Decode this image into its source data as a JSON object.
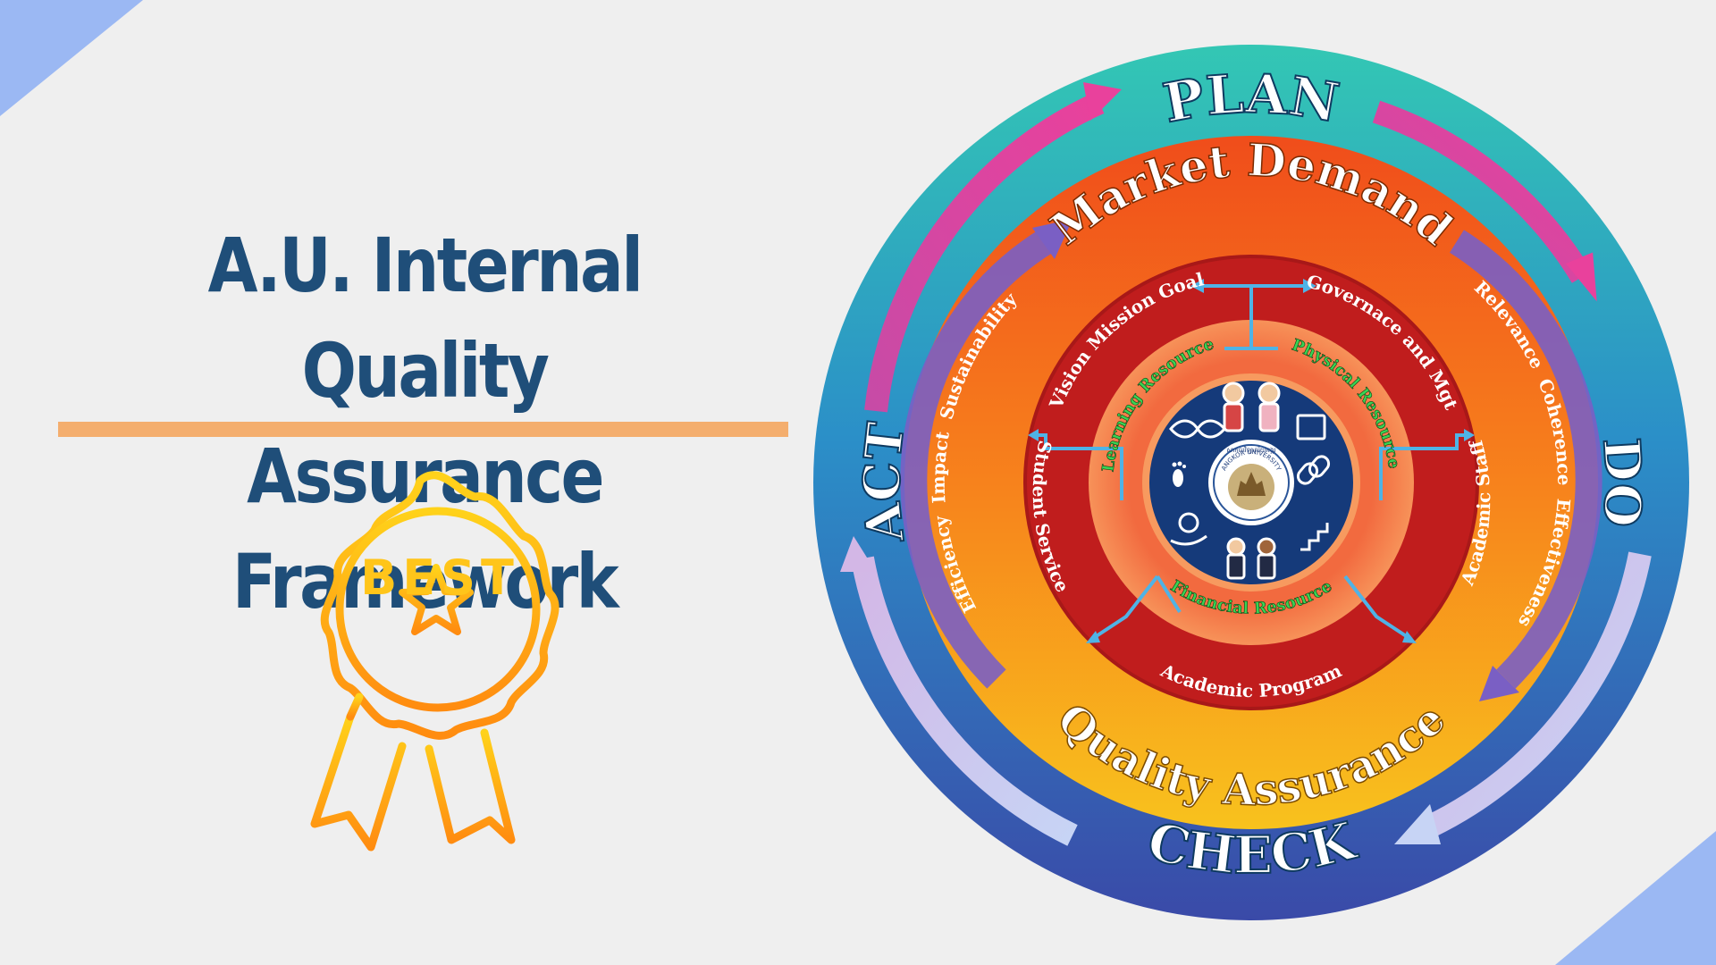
{
  "title": {
    "line1": "A.U. Internal Quality",
    "line2": "Assurance Framework"
  },
  "badge": {
    "text": "BEST",
    "icon": "award-ribbon-star-icon"
  },
  "cycle": {
    "plan": "PLAN",
    "do": "DO",
    "check": "CHECK",
    "act": "ACT"
  },
  "orange_ring": {
    "top": "Market Demand",
    "bottom": "Quality Assurance",
    "right_criteria": "Relevance  Coherence  Effectiveness",
    "left_criteria": "Efficiency  Impact  Sustainability"
  },
  "red_ring": {
    "vision": "Vision Mission Goal",
    "governance": "Governace and Mgt",
    "academic_staff": "Academic Staff",
    "academic_program": "Academic Program",
    "student_service": "Student Service"
  },
  "inner_ring": {
    "learning": "Learning Resource",
    "physical": "Physical Resource",
    "financial": "Financial Resource"
  },
  "logo": {
    "label": "ANGKOR UNIVERSITY",
    "script": "សាកលវិទ្យាល័យអង្គរ"
  },
  "colors": {
    "title": "#1f4e79",
    "underline": "#f4ae6e",
    "corner": "#9bb8f3",
    "outer_top": "#33c7b4",
    "outer_bottom": "#2f4f9f",
    "orange_top": "#f04d1b",
    "orange_bottom": "#f7c11c",
    "red_ring": "#c01d1d",
    "inner_ring": "#f47a45",
    "center": "#153a7a",
    "resource_text": "#39d353",
    "connector": "#4fb3e6"
  }
}
